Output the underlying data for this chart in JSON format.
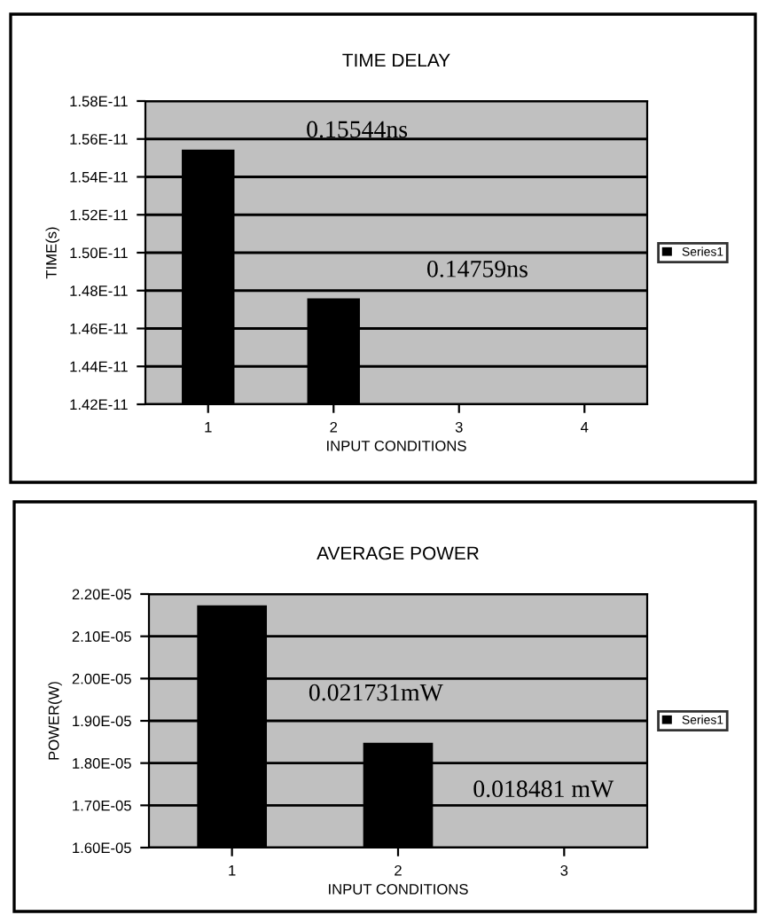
{
  "chart_data": [
    {
      "type": "bar",
      "title": "TIME DELAY",
      "xlabel": "INPUT CONDITIONS",
      "ylabel": "TIME(s)",
      "categories": [
        "1",
        "2",
        "3",
        "4"
      ],
      "series": [
        {
          "name": "Series1",
          "color": "#000000",
          "values": [
            1.5544e-11,
            1.4759e-11,
            null,
            null
          ]
        }
      ],
      "ylim": [
        1.42e-11,
        1.58e-11
      ],
      "yticks": [
        {
          "value": 1.42e-11,
          "label": "1.42E-11"
        },
        {
          "value": 1.44e-11,
          "label": "1.44E-11"
        },
        {
          "value": 1.46e-11,
          "label": "1.46E-11"
        },
        {
          "value": 1.48e-11,
          "label": "1.48E-11"
        },
        {
          "value": 1.5e-11,
          "label": "1.50E-11"
        },
        {
          "value": 1.52e-11,
          "label": "1.52E-11"
        },
        {
          "value": 1.54e-11,
          "label": "1.54E-11"
        },
        {
          "value": 1.56e-11,
          "label": "1.56E-11"
        },
        {
          "value": 1.58e-11,
          "label": "1.58E-11"
        }
      ],
      "grid": "y",
      "legend": "right",
      "annotations": [
        "0.15544ns",
        "0.14759ns"
      ]
    },
    {
      "type": "bar",
      "title": "AVERAGE POWER",
      "xlabel": "INPUT CONDITIONS",
      "ylabel": "POWER(W)",
      "categories": [
        "1",
        "2",
        "3"
      ],
      "series": [
        {
          "name": "Series1",
          "color": "#000000",
          "values": [
            2.1731e-05,
            1.8481e-05,
            null
          ]
        }
      ],
      "ylim": [
        1.6e-05,
        2.2e-05
      ],
      "yticks": [
        {
          "value": 1.6e-05,
          "label": "1.60E-05"
        },
        {
          "value": 1.7e-05,
          "label": "1.70E-05"
        },
        {
          "value": 1.8e-05,
          "label": "1.80E-05"
        },
        {
          "value": 1.9e-05,
          "label": "1.90E-05"
        },
        {
          "value": 2e-05,
          "label": "2.00E-05"
        },
        {
          "value": 2.1e-05,
          "label": "2.10E-05"
        },
        {
          "value": 2.2e-05,
          "label": "2.20E-05"
        }
      ],
      "grid": "y",
      "legend": "right",
      "annotations": [
        "0.021731mW",
        "0.018481 mW"
      ]
    }
  ]
}
